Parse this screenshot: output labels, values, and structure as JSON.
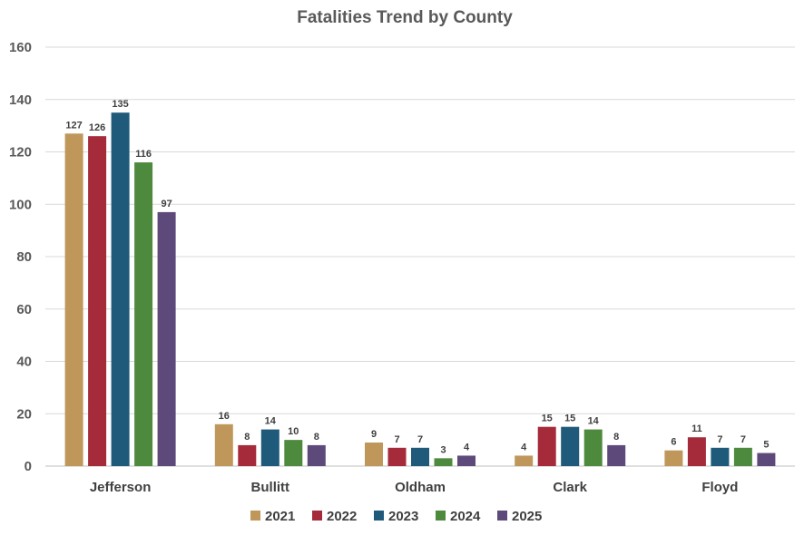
{
  "chart_data": {
    "type": "bar",
    "title": "Fatalities Trend by County",
    "xlabel": "",
    "ylabel": "",
    "ylim": [
      0,
      160
    ],
    "yticks": [
      0,
      20,
      40,
      60,
      80,
      100,
      120,
      140,
      160
    ],
    "grid": true,
    "legend_position": "bottom",
    "categories": [
      "Jefferson",
      "Bullitt",
      "Oldham",
      "Clark",
      "Floyd"
    ],
    "series": [
      {
        "name": "2021",
        "color": "#c0975b",
        "values": [
          127,
          16,
          9,
          4,
          6
        ]
      },
      {
        "name": "2022",
        "color": "#a52a3a",
        "values": [
          126,
          8,
          7,
          15,
          11
        ]
      },
      {
        "name": "2023",
        "color": "#1f5a7a",
        "values": [
          135,
          14,
          7,
          15,
          7
        ]
      },
      {
        "name": "2024",
        "color": "#4e8a3e",
        "values": [
          116,
          10,
          3,
          14,
          7
        ]
      },
      {
        "name": "2025",
        "color": "#5e4a7a",
        "values": [
          97,
          8,
          4,
          8,
          5
        ]
      }
    ]
  }
}
